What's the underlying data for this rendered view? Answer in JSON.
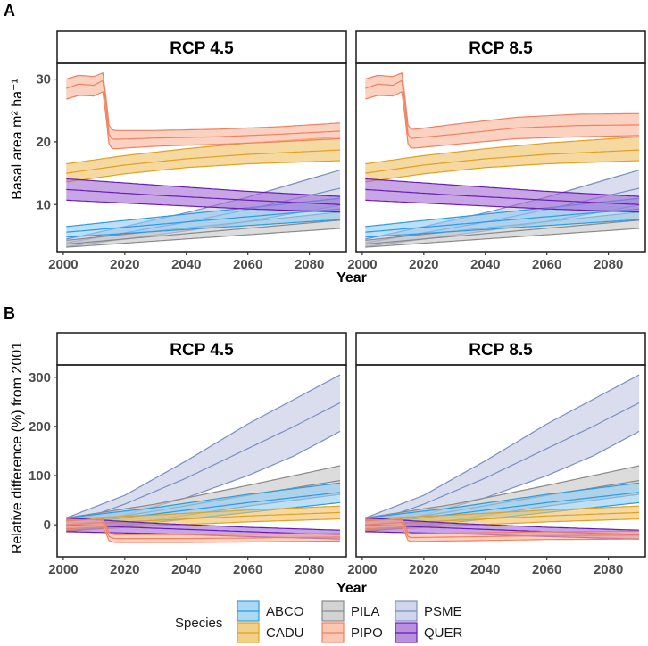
{
  "figure": {
    "legend_title": "Species"
  },
  "species": [
    {
      "code": "ABCO",
      "color": "#2b9be6",
      "fill": "#8dcbf2"
    },
    {
      "code": "CADU",
      "color": "#e0a020",
      "fill": "#efc060"
    },
    {
      "code": "PILA",
      "color": "#8a8a8a",
      "fill": "#c4c4c4"
    },
    {
      "code": "PIPO",
      "color": "#f08060",
      "fill": "#f9b49a"
    },
    {
      "code": "PSME",
      "color": "#7b8fc0",
      "fill": "#bfc7e3"
    },
    {
      "code": "QUER",
      "color": "#6a1bb5",
      "fill": "#a36ad6"
    }
  ],
  "chart_data": [
    {
      "panel": "A",
      "type": "area",
      "xlabel": "Year",
      "ylabel": "Basal area  m² ha⁻¹",
      "xlim": [
        1998,
        2092
      ],
      "ylim": [
        2.5,
        32.5
      ],
      "xticks": [
        2000,
        2020,
        2040,
        2060,
        2080
      ],
      "yticks": [
        10,
        20,
        30
      ],
      "facets": [
        {
          "title": "RCP 4.5",
          "series": [
            {
              "name": "ABCO",
              "x": [
                2001,
                2090
              ],
              "mid": [
                5.6,
                9.3
              ],
              "lo": [
                4.8,
                7.6
              ],
              "hi": [
                6.5,
                11.0
              ]
            },
            {
              "name": "CADU",
              "x": [
                2001,
                2020,
                2040,
                2060,
                2090
              ],
              "mid": [
                15.0,
                16.3,
                17.3,
                18.0,
                18.7
              ],
              "lo": [
                13.6,
                14.9,
                15.9,
                16.5,
                17.0
              ],
              "hi": [
                16.5,
                17.8,
                18.9,
                19.8,
                20.8
              ]
            },
            {
              "name": "PILA",
              "x": [
                2001,
                2090
              ],
              "mid": [
                3.7,
                7.5
              ],
              "lo": [
                3.2,
                6.2
              ],
              "hi": [
                4.3,
                8.8
              ]
            },
            {
              "name": "PIPO",
              "x": [
                2001,
                2005,
                2010,
                2013,
                2015,
                2017,
                2030,
                2050,
                2070,
                2090
              ],
              "mid": [
                28.5,
                29.2,
                29.0,
                29.8,
                20.5,
                20.4,
                20.6,
                20.8,
                21.2,
                21.7
              ],
              "lo": [
                26.8,
                27.4,
                27.3,
                28.0,
                19.0,
                18.9,
                19.3,
                19.6,
                20.0,
                20.5
              ],
              "hi": [
                30.0,
                30.6,
                30.4,
                31.0,
                22.0,
                21.8,
                21.8,
                22.0,
                22.4,
                23.0
              ]
            },
            {
              "name": "PSME",
              "x": [
                2001,
                2020,
                2040,
                2060,
                2090
              ],
              "mid": [
                3.9,
                5.5,
                7.2,
                9.2,
                12.6
              ],
              "lo": [
                3.3,
                4.5,
                5.8,
                7.3,
                9.9
              ],
              "hi": [
                4.5,
                6.5,
                8.7,
                11.2,
                15.5
              ]
            },
            {
              "name": "QUER",
              "x": [
                2001,
                2030,
                2060,
                2090
              ],
              "mid": [
                12.4,
                11.5,
                10.7,
                10.0
              ],
              "lo": [
                10.7,
                10.0,
                9.3,
                8.8
              ],
              "hi": [
                14.1,
                13.1,
                12.1,
                11.3
              ]
            }
          ]
        },
        {
          "title": "RCP 8.5",
          "series": [
            {
              "name": "ABCO",
              "x": [
                2001,
                2090
              ],
              "mid": [
                5.6,
                9.3
              ],
              "lo": [
                4.8,
                7.6
              ],
              "hi": [
                6.5,
                11.0
              ]
            },
            {
              "name": "CADU",
              "x": [
                2001,
                2020,
                2040,
                2060,
                2090
              ],
              "mid": [
                15.0,
                16.3,
                17.3,
                18.0,
                18.7
              ],
              "lo": [
                13.6,
                14.9,
                15.9,
                16.5,
                17.0
              ],
              "hi": [
                16.5,
                17.8,
                18.9,
                19.8,
                20.8
              ]
            },
            {
              "name": "PILA",
              "x": [
                2001,
                2090
              ],
              "mid": [
                3.7,
                7.5
              ],
              "lo": [
                3.2,
                6.2
              ],
              "hi": [
                4.3,
                8.8
              ]
            },
            {
              "name": "PIPO",
              "x": [
                2001,
                2005,
                2010,
                2013,
                2015,
                2017,
                2030,
                2050,
                2070,
                2090
              ],
              "mid": [
                28.5,
                29.2,
                29.0,
                29.8,
                20.5,
                20.6,
                21.2,
                22.2,
                22.6,
                22.7
              ],
              "lo": [
                26.8,
                27.4,
                27.3,
                28.0,
                19.0,
                19.0,
                19.6,
                20.5,
                20.8,
                21.0
              ],
              "hi": [
                30.0,
                30.6,
                30.4,
                31.0,
                22.0,
                22.0,
                22.8,
                23.9,
                24.4,
                24.5
              ]
            },
            {
              "name": "PSME",
              "x": [
                2001,
                2020,
                2040,
                2060,
                2090
              ],
              "mid": [
                3.9,
                5.5,
                7.2,
                9.2,
                12.6
              ],
              "lo": [
                3.3,
                4.5,
                5.8,
                7.3,
                9.9
              ],
              "hi": [
                4.5,
                6.5,
                8.7,
                11.2,
                15.5
              ]
            },
            {
              "name": "QUER",
              "x": [
                2001,
                2030,
                2060,
                2090
              ],
              "mid": [
                12.4,
                11.5,
                10.7,
                10.0
              ],
              "lo": [
                10.7,
                10.0,
                9.3,
                8.8
              ],
              "hi": [
                14.1,
                13.1,
                12.1,
                11.3
              ]
            }
          ]
        }
      ]
    },
    {
      "panel": "B",
      "type": "area",
      "xlabel": "Year",
      "ylabel": "Relative difference (%) from 2001",
      "xlim": [
        1998,
        2092
      ],
      "ylim": [
        -65,
        325
      ],
      "xticks": [
        2000,
        2020,
        2040,
        2060,
        2080
      ],
      "yticks": [
        0,
        100,
        200,
        300
      ],
      "facets": [
        {
          "title": "RCP 4.5",
          "series": [
            {
              "name": "ABCO",
              "x": [
                2001,
                2030,
                2060,
                2090
              ],
              "mid": [
                0,
                22,
                45,
                66
              ],
              "lo": [
                -14,
                5,
                25,
                45
              ],
              "hi": [
                14,
                35,
                62,
                85
              ]
            },
            {
              "name": "CADU",
              "x": [
                2001,
                2030,
                2060,
                2090
              ],
              "mid": [
                0,
                9,
                18,
                25
              ],
              "lo": [
                -12,
                -2,
                6,
                12
              ],
              "hi": [
                12,
                20,
                30,
                38
              ]
            },
            {
              "name": "PILA",
              "x": [
                2001,
                2030,
                2060,
                2090
              ],
              "mid": [
                0,
                28,
                60,
                90
              ],
              "lo": [
                -14,
                10,
                38,
                62
              ],
              "hi": [
                14,
                42,
                80,
                120
              ]
            },
            {
              "name": "PIPO",
              "x": [
                2001,
                2013,
                2015,
                2017,
                2040,
                2060,
                2090
              ],
              "mid": [
                0,
                5,
                -26,
                -28,
                -28,
                -27,
                -25
              ],
              "lo": [
                -8,
                -5,
                -34,
                -36,
                -36,
                -35,
                -33
              ],
              "hi": [
                8,
                12,
                -18,
                -20,
                -20,
                -19,
                -17
              ]
            },
            {
              "name": "PSME",
              "x": [
                2001,
                2020,
                2040,
                2060,
                2075,
                2090
              ],
              "mid": [
                0,
                42,
                95,
                155,
                200,
                248
              ],
              "lo": [
                -12,
                20,
                55,
                100,
                140,
                190
              ],
              "hi": [
                14,
                60,
                130,
                205,
                255,
                305
              ]
            },
            {
              "name": "QUER",
              "x": [
                2001,
                2030,
                2060,
                2090
              ],
              "mid": [
                0,
                -7,
                -14,
                -20
              ],
              "lo": [
                -14,
                -18,
                -24,
                -29
              ],
              "hi": [
                14,
                3,
                -5,
                -11
              ]
            }
          ]
        },
        {
          "title": "RCP 8.5",
          "series": [
            {
              "name": "ABCO",
              "x": [
                2001,
                2030,
                2060,
                2090
              ],
              "mid": [
                0,
                22,
                45,
                66
              ],
              "lo": [
                -14,
                5,
                25,
                45
              ],
              "hi": [
                14,
                35,
                62,
                85
              ]
            },
            {
              "name": "CADU",
              "x": [
                2001,
                2030,
                2060,
                2090
              ],
              "mid": [
                0,
                9,
                18,
                25
              ],
              "lo": [
                -12,
                -2,
                6,
                12
              ],
              "hi": [
                12,
                20,
                30,
                38
              ]
            },
            {
              "name": "PILA",
              "x": [
                2001,
                2030,
                2060,
                2090
              ],
              "mid": [
                0,
                28,
                60,
                90
              ],
              "lo": [
                -14,
                10,
                38,
                62
              ],
              "hi": [
                14,
                42,
                80,
                120
              ]
            },
            {
              "name": "PIPO",
              "x": [
                2001,
                2013,
                2015,
                2017,
                2040,
                2060,
                2090
              ],
              "mid": [
                0,
                5,
                -26,
                -26,
                -24,
                -22,
                -21
              ],
              "lo": [
                -8,
                -5,
                -34,
                -34,
                -32,
                -30,
                -29
              ],
              "hi": [
                8,
                12,
                -18,
                -18,
                -16,
                -14,
                -13
              ]
            },
            {
              "name": "PSME",
              "x": [
                2001,
                2020,
                2040,
                2060,
                2075,
                2090
              ],
              "mid": [
                0,
                42,
                95,
                155,
                200,
                248
              ],
              "lo": [
                -12,
                20,
                55,
                100,
                140,
                190
              ],
              "hi": [
                14,
                60,
                130,
                205,
                255,
                305
              ]
            },
            {
              "name": "QUER",
              "x": [
                2001,
                2030,
                2060,
                2090
              ],
              "mid": [
                0,
                -7,
                -14,
                -20
              ],
              "lo": [
                -14,
                -18,
                -24,
                -29
              ],
              "hi": [
                14,
                3,
                -5,
                -11
              ]
            }
          ]
        }
      ]
    }
  ]
}
